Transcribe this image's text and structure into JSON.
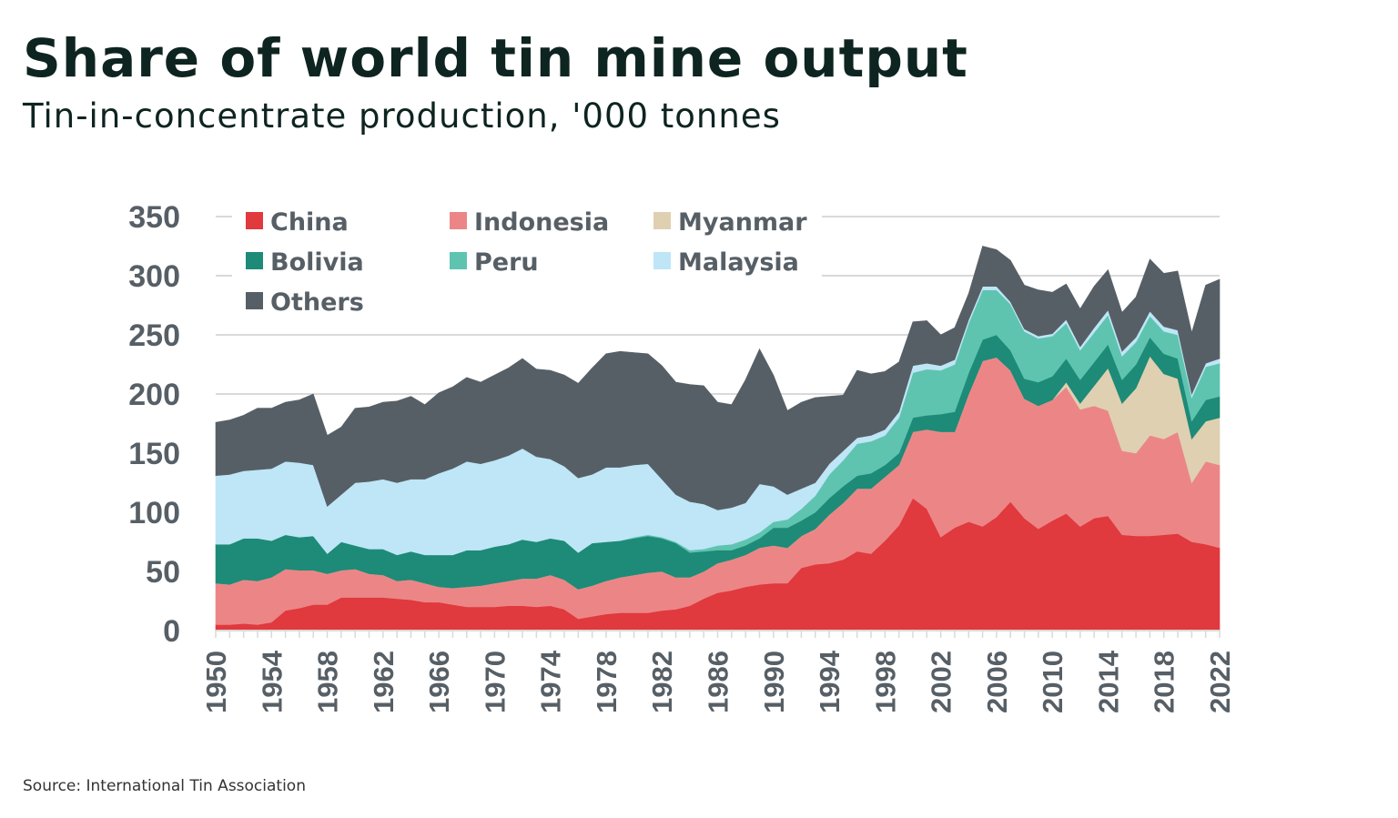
{
  "header": {
    "title": "Share of world tin mine output",
    "subtitle": "Tin-in-concentrate production, '000 tonnes"
  },
  "footer": {
    "source": "Source: International Tin Association"
  },
  "chart_data": {
    "type": "area",
    "stacked": true,
    "title": "Share of world tin mine output",
    "subtitle": "Tin-in-concentrate production, '000 tonnes",
    "xlabel": "",
    "ylabel": "",
    "xlim": [
      1950,
      2022
    ],
    "ylim": [
      0,
      350
    ],
    "yticks": [
      0,
      50,
      100,
      150,
      200,
      250,
      300,
      350
    ],
    "xticks": [
      1950,
      1954,
      1958,
      1962,
      1966,
      1970,
      1974,
      1978,
      1982,
      1986,
      1990,
      1994,
      1998,
      2002,
      2006,
      2010,
      2014,
      2018,
      2022
    ],
    "grid": "horizontal",
    "legend": "top-left",
    "x_start": 1950,
    "series": [
      {
        "name": "China",
        "color": "#e0393e",
        "values": [
          5,
          5,
          6,
          5,
          7,
          17,
          19,
          22,
          22,
          28,
          28,
          28,
          28,
          27,
          26,
          24,
          24,
          22,
          20,
          20,
          20,
          21,
          21,
          20,
          21,
          18,
          10,
          12,
          14,
          15,
          15,
          15,
          17,
          18,
          21,
          27,
          32,
          34,
          37,
          39,
          40,
          40,
          53,
          56,
          57,
          60,
          67,
          65,
          76,
          89,
          112,
          103,
          79,
          87,
          92,
          88,
          96,
          109,
          95,
          86,
          93,
          99,
          88,
          95,
          97,
          81,
          80,
          80,
          81,
          82,
          75,
          73,
          70
        ]
      },
      {
        "name": "Indonesia",
        "color": "#ec8686",
        "values": [
          35,
          34,
          37,
          37,
          38,
          35,
          32,
          29,
          26,
          23,
          24,
          20,
          19,
          15,
          17,
          16,
          13,
          14,
          17,
          18,
          20,
          21,
          23,
          24,
          26,
          25,
          25,
          26,
          28,
          30,
          32,
          34,
          33,
          27,
          24,
          23,
          25,
          26,
          27,
          31,
          32,
          30,
          27,
          30,
          41,
          48,
          53,
          55,
          54,
          51,
          56,
          67,
          89,
          81,
          108,
          140,
          135,
          111,
          101,
          104,
          102,
          107,
          99,
          95,
          89,
          71,
          70,
          85,
          81,
          86,
          50,
          70,
          70
        ]
      },
      {
        "name": "Myanmar",
        "color": "#dfd0b1",
        "values": [
          0,
          0,
          0,
          0,
          0,
          0,
          0,
          0,
          0,
          0,
          0,
          0,
          0,
          0,
          0,
          0,
          0,
          0,
          0,
          0,
          0,
          0,
          0,
          0,
          0,
          0,
          0,
          0,
          0,
          0,
          0,
          0,
          0,
          0,
          0,
          0,
          0,
          0,
          0,
          0,
          0,
          0,
          0,
          0,
          0,
          0,
          0,
          0,
          0,
          0,
          0,
          0,
          0,
          0,
          0,
          0,
          0,
          0,
          0,
          0,
          0,
          4,
          5,
          17,
          36,
          40,
          55,
          67,
          55,
          45,
          37,
          34,
          40
        ]
      },
      {
        "name": "Bolivia",
        "color": "#1e8a78",
        "values": [
          33,
          34,
          35,
          36,
          31,
          29,
          28,
          29,
          17,
          24,
          20,
          21,
          22,
          22,
          24,
          24,
          27,
          28,
          31,
          30,
          31,
          31,
          33,
          31,
          31,
          33,
          31,
          36,
          33,
          31,
          31,
          31,
          28,
          29,
          21,
          17,
          11,
          8,
          8,
          8,
          15,
          17,
          13,
          14,
          14,
          14,
          11,
          13,
          10,
          10,
          12,
          12,
          15,
          17,
          18,
          18,
          19,
          17,
          17,
          20,
          20,
          20,
          20,
          20,
          20,
          20,
          20,
          16,
          17,
          17,
          15,
          18,
          18
        ]
      },
      {
        "name": "Peru",
        "color": "#5ec4b0",
        "values": [
          0,
          0,
          0,
          0,
          0,
          0,
          0,
          0,
          0,
          0,
          0,
          0,
          0,
          0,
          0,
          0,
          0,
          0,
          0,
          0,
          0,
          0,
          0,
          0,
          0,
          0,
          0,
          0,
          0,
          0,
          1,
          1,
          1,
          1,
          2,
          2,
          4,
          5,
          5,
          5,
          5,
          7,
          10,
          14,
          20,
          22,
          27,
          27,
          25,
          30,
          38,
          39,
          37,
          40,
          42,
          42,
          38,
          39,
          40,
          37,
          34,
          30,
          25,
          25,
          25,
          20,
          19,
          18,
          19,
          20,
          20,
          28,
          28
        ]
      },
      {
        "name": "Malaysia",
        "color": "#bee6f7",
        "values": [
          58,
          59,
          57,
          58,
          61,
          62,
          63,
          60,
          40,
          40,
          53,
          57,
          59,
          61,
          61,
          64,
          69,
          73,
          75,
          73,
          73,
          75,
          77,
          72,
          67,
          63,
          63,
          58,
          63,
          62,
          61,
          60,
          49,
          40,
          41,
          38,
          30,
          31,
          31,
          41,
          30,
          21,
          17,
          11,
          9,
          8,
          5,
          5,
          5,
          5,
          6,
          5,
          4,
          4,
          3,
          3,
          3,
          2,
          2,
          2,
          2,
          3,
          3,
          4,
          4,
          4,
          4,
          4,
          4,
          4,
          3,
          3,
          4
        ]
      },
      {
        "name": "Others",
        "color": "#575f66",
        "values": [
          45,
          46,
          47,
          52,
          51,
          50,
          53,
          60,
          60,
          57,
          63,
          63,
          65,
          69,
          70,
          63,
          68,
          69,
          71,
          69,
          72,
          74,
          76,
          74,
          75,
          77,
          80,
          90,
          96,
          98,
          95,
          93,
          96,
          95,
          99,
          100,
          91,
          87,
          104,
          114,
          94,
          71,
          73,
          72,
          57,
          47,
          57,
          52,
          49,
          42,
          37,
          36,
          26,
          27,
          22,
          34,
          31,
          35,
          37,
          39,
          35,
          30,
          32,
          35,
          34,
          33,
          34,
          44,
          45,
          50,
          52,
          66,
          67
        ]
      }
    ]
  }
}
